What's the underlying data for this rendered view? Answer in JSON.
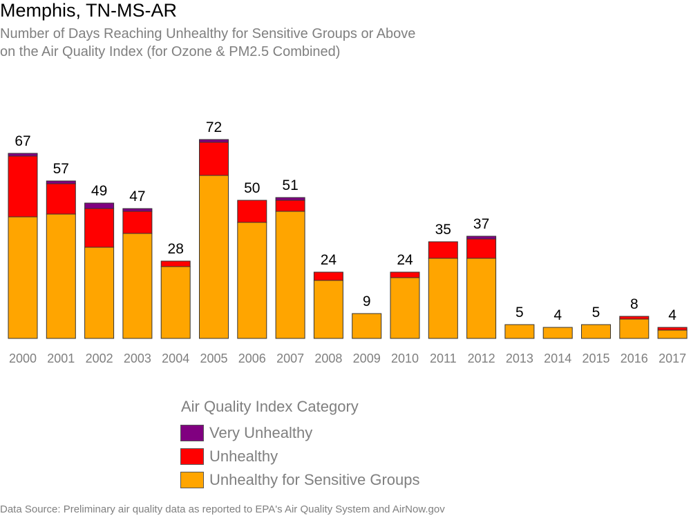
{
  "title": "Memphis, TN-MS-AR",
  "subtitle_line1": "Number of Days Reaching Unhealthy for Sensitive Groups or Above",
  "subtitle_line2": "on the Air Quality Index (for Ozone & PM2.5 Combined)",
  "legend": {
    "title": "Air Quality Index Category",
    "items": [
      {
        "label": "Very Unhealthy",
        "color": "#800080"
      },
      {
        "label": "Unhealthy",
        "color": "#ff0000"
      },
      {
        "label": "Unhealthy for Sensitive Groups",
        "color": "#ffa500"
      }
    ]
  },
  "source": "Data Source: Preliminary air quality data as reported to EPA's Air Quality System and AirNow.gov",
  "chart_data": {
    "type": "bar",
    "stacked": true,
    "categories": [
      "2000",
      "2001",
      "2002",
      "2003",
      "2004",
      "2005",
      "2006",
      "2007",
      "2008",
      "2009",
      "2010",
      "2011",
      "2012",
      "2013",
      "2014",
      "2015",
      "2016",
      "2017"
    ],
    "series": [
      {
        "name": "Unhealthy for Sensitive Groups",
        "color": "#ffa500",
        "values": [
          44,
          45,
          33,
          38,
          26,
          59,
          42,
          46,
          21,
          9,
          22,
          29,
          29,
          5,
          4,
          5,
          7,
          3
        ]
      },
      {
        "name": "Unhealthy",
        "color": "#ff0000",
        "values": [
          22,
          11,
          14,
          8,
          2,
          12,
          8,
          4,
          3,
          0,
          2,
          6,
          7,
          0,
          0,
          0,
          1,
          1
        ]
      },
      {
        "name": "Very Unhealthy",
        "color": "#800080",
        "values": [
          1,
          1,
          2,
          1,
          0,
          1,
          0,
          1,
          0,
          0,
          0,
          0,
          1,
          0,
          0,
          0,
          0,
          0
        ]
      }
    ],
    "totals": [
      67,
      57,
      49,
      47,
      28,
      72,
      50,
      51,
      24,
      9,
      24,
      35,
      37,
      5,
      4,
      5,
      8,
      4
    ],
    "ylim": [
      0,
      80
    ],
    "grid": false
  }
}
